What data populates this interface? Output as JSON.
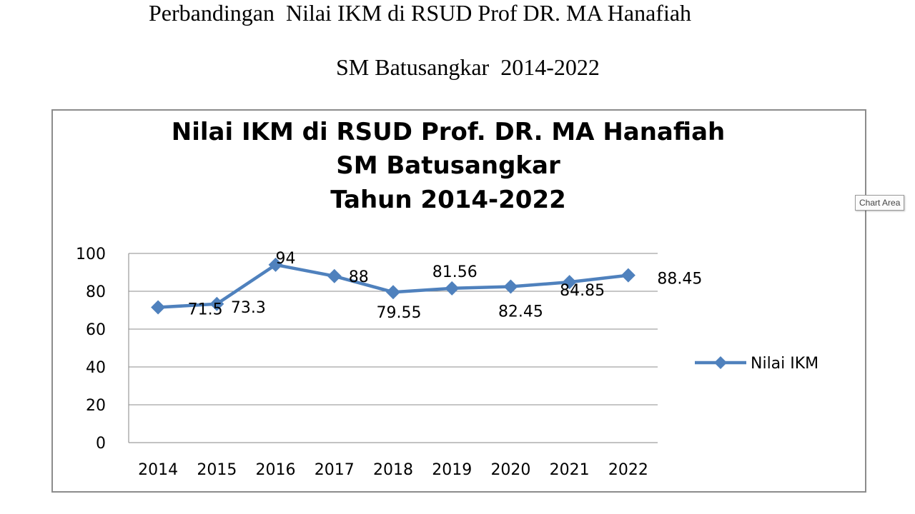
{
  "page": {
    "heading_line1": "Perbandingan  Nilai IKM di RSUD Prof DR. MA Hanafiah",
    "heading_line2": "SM Batusangkar  2014-2022",
    "tooltip": "Chart Area"
  },
  "chart_data": {
    "type": "line",
    "title_lines": [
      "Nilai IKM di RSUD Prof. DR. MA Hanafiah",
      "SM Batusangkar",
      "Tahun 2014-2022"
    ],
    "categories": [
      "2014",
      "2015",
      "2016",
      "2017",
      "2018",
      "2019",
      "2020",
      "2021",
      "2022"
    ],
    "series": [
      {
        "name": "Nilai IKM",
        "values": [
          71.5,
          73.3,
          94,
          88,
          79.55,
          81.56,
          82.45,
          84.85,
          88.45
        ],
        "color": "#4f81bd"
      }
    ],
    "data_labels": [
      "71.5",
      "73.3",
      "94",
      "88",
      "79.55",
      "81.56",
      "82.45",
      "84.85",
      "88.45"
    ],
    "ylim": [
      0,
      100
    ],
    "yticks": [
      0,
      20,
      40,
      60,
      80,
      100
    ],
    "grid": true,
    "legend": "right",
    "xlabel": "",
    "ylabel": ""
  }
}
